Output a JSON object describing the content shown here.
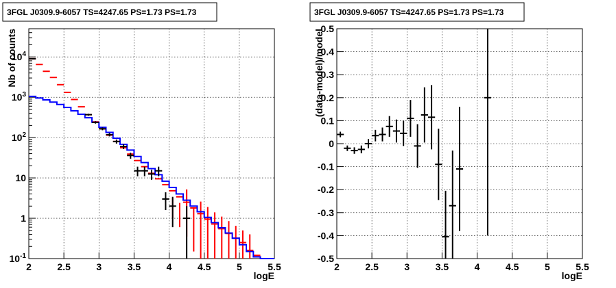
{
  "chart_data": [
    {
      "type": "step+errorbar",
      "title": "3FGL J0309.9-6057 TS=4247.65 PS=1.73 PS=1.73",
      "xlabel": "logE",
      "ylabel": "Nb of counts",
      "xlim": [
        2,
        5.5
      ],
      "ylim": [
        0.1,
        50000
      ],
      "yscale": "log",
      "grid": true,
      "xticks": [
        "2",
        "2.5",
        "3",
        "3.5",
        "4",
        "4.5",
        "5",
        "5.5"
      ],
      "yticks": [
        {
          "v": 0.1,
          "m": "10",
          "e": "-1"
        },
        {
          "v": 1,
          "m": "1",
          "e": ""
        },
        {
          "v": 10,
          "m": "10",
          "e": ""
        },
        {
          "v": 100,
          "m": "10",
          "e": "2"
        },
        {
          "v": 1000,
          "m": "10",
          "e": "3"
        },
        {
          "v": 10000,
          "m": "10",
          "e": "4"
        }
      ],
      "colors": {
        "model_total": "#ff0000",
        "model_source": "#0000ff",
        "data": "#000000"
      },
      "bin_width": 0.1,
      "bins": [
        2.0,
        2.1,
        2.2,
        2.3,
        2.4,
        2.5,
        2.6,
        2.7,
        2.8,
        2.9,
        3.0,
        3.1,
        3.2,
        3.3,
        3.4,
        3.5,
        3.6,
        3.7,
        3.8,
        3.9,
        4.0,
        4.1,
        4.2,
        4.3,
        4.4,
        4.5,
        4.6,
        4.7,
        4.8,
        4.9,
        5.0,
        5.1,
        5.2,
        5.3,
        5.4
      ],
      "series": [
        {
          "values": [
            9000,
            6500,
            4400,
            3100,
            2050,
            1320,
            880,
            580,
            370,
            245,
            165,
            115,
            80,
            56,
            39,
            27,
            19,
            13,
            9.5,
            6.8,
            4.8,
            3.4,
            2.5,
            1.8,
            1.3,
            0.95,
            0.72,
            0.55,
            0.42,
            0.32,
            0.25,
            0.16,
            0.12,
            0.1,
            0.1
          ]
        },
        {
          "values": [
            1050,
            960,
            860,
            760,
            660,
            560,
            460,
            380,
            310,
            240,
            180,
            135,
            96,
            68,
            49,
            34,
            24,
            17,
            12,
            8.3,
            5.8,
            4.0,
            2.8,
            2.0,
            1.45,
            1.05,
            0.78,
            0.58,
            0.43,
            0.32,
            0.22,
            0.15,
            0.11,
            0.1,
            0.1
          ]
        }
      ],
      "red_errors": [
        {
          "x": 4.05,
          "lo": 1.0,
          "hi": 3.2
        },
        {
          "x": 4.15,
          "lo": 0.6,
          "hi": 2.4
        },
        {
          "x": 4.25,
          "lo": 0.35,
          "hi": 5.2
        },
        {
          "x": 4.35,
          "lo": 0.15,
          "hi": 1.8
        },
        {
          "x": 4.45,
          "lo": 0.1,
          "hi": 2.6
        },
        {
          "x": 4.55,
          "lo": 0.1,
          "hi": 1.9
        },
        {
          "x": 4.65,
          "lo": 0.1,
          "hi": 1.4
        },
        {
          "x": 4.75,
          "lo": 0.1,
          "hi": 1.1
        },
        {
          "x": 4.85,
          "lo": 0.1,
          "hi": 0.85
        },
        {
          "x": 4.95,
          "lo": 0.1,
          "hi": 0.65
        },
        {
          "x": 5.05,
          "lo": 0.1,
          "hi": 0.5
        },
        {
          "x": 5.15,
          "lo": 0.1,
          "hi": 0.4
        }
      ],
      "data_points": [
        {
          "x": 2.05,
          "y": 9000,
          "lo": 8800,
          "hi": 9200
        },
        {
          "x": 2.85,
          "y": 370,
          "lo": 350,
          "hi": 390
        },
        {
          "x": 2.95,
          "y": 238,
          "lo": 222,
          "hi": 254
        },
        {
          "x": 3.05,
          "y": 165,
          "lo": 152,
          "hi": 178
        },
        {
          "x": 3.15,
          "y": 118,
          "lo": 107,
          "hi": 129
        },
        {
          "x": 3.25,
          "y": 80,
          "lo": 71,
          "hi": 89
        },
        {
          "x": 3.35,
          "y": 60,
          "lo": 52,
          "hi": 68
        },
        {
          "x": 3.45,
          "y": 36,
          "lo": 30,
          "hi": 42
        },
        {
          "x": 3.55,
          "y": 15,
          "lo": 11,
          "hi": 19
        },
        {
          "x": 3.65,
          "y": 15,
          "lo": 11,
          "hi": 19
        },
        {
          "x": 3.75,
          "y": 12.5,
          "lo": 9,
          "hi": 16
        },
        {
          "x": 3.85,
          "y": 15,
          "lo": 11,
          "hi": 19
        },
        {
          "x": 3.95,
          "y": 3.0,
          "lo": 1.6,
          "hi": 4.4
        },
        {
          "x": 4.05,
          "y": 2.0,
          "lo": 0.6,
          "hi": 3.4
        },
        {
          "x": 4.25,
          "y": 1.0,
          "lo": 0.1,
          "hi": 2.0
        }
      ]
    },
    {
      "type": "errorbar",
      "title": "3FGL J0309.9-6057 TS=4247.65 PS=1.73 PS=1.73",
      "xlabel": "logE",
      "ylabel": "(data-model)/model",
      "xlim": [
        2,
        5.5
      ],
      "ylim": [
        -0.5,
        0.5
      ],
      "grid": true,
      "xticks": [
        "2",
        "2.5",
        "3",
        "3.5",
        "4",
        "4.5",
        "5",
        "5.5"
      ],
      "yticks": [
        "-0.5",
        "-0.4",
        "-0.3",
        "-0.2",
        "-0.1",
        "0",
        "0.1",
        "0.2",
        "0.3",
        "0.4",
        "0.5"
      ],
      "bin_width": 0.1,
      "points": [
        {
          "x": 2.05,
          "y": 0.04,
          "err": 0.012
        },
        {
          "x": 2.15,
          "y": -0.02,
          "err": 0.012
        },
        {
          "x": 2.25,
          "y": -0.03,
          "err": 0.014
        },
        {
          "x": 2.35,
          "y": -0.025,
          "err": 0.017
        },
        {
          "x": 2.45,
          "y": 0.0,
          "err": 0.02
        },
        {
          "x": 2.55,
          "y": 0.035,
          "err": 0.025
        },
        {
          "x": 2.65,
          "y": 0.04,
          "err": 0.03
        },
        {
          "x": 2.75,
          "y": 0.075,
          "err": 0.045
        },
        {
          "x": 2.85,
          "y": 0.055,
          "err": 0.05
        },
        {
          "x": 2.95,
          "y": 0.045,
          "err": 0.055
        },
        {
          "x": 3.05,
          "y": 0.11,
          "err": 0.08
        },
        {
          "x": 3.15,
          "y": -0.01,
          "err": 0.095
        },
        {
          "x": 3.25,
          "y": 0.125,
          "err": 0.12
        },
        {
          "x": 3.35,
          "y": 0.115,
          "err": 0.14
        },
        {
          "x": 3.45,
          "y": -0.09,
          "err": 0.155
        },
        {
          "x": 3.55,
          "y": -0.405,
          "err": 0.2
        },
        {
          "x": 3.65,
          "y": -0.27,
          "err": 0.24
        },
        {
          "x": 3.75,
          "y": -0.11,
          "err": 0.27
        },
        {
          "x": 4.15,
          "y": 0.2,
          "err": 0.6
        }
      ]
    }
  ]
}
